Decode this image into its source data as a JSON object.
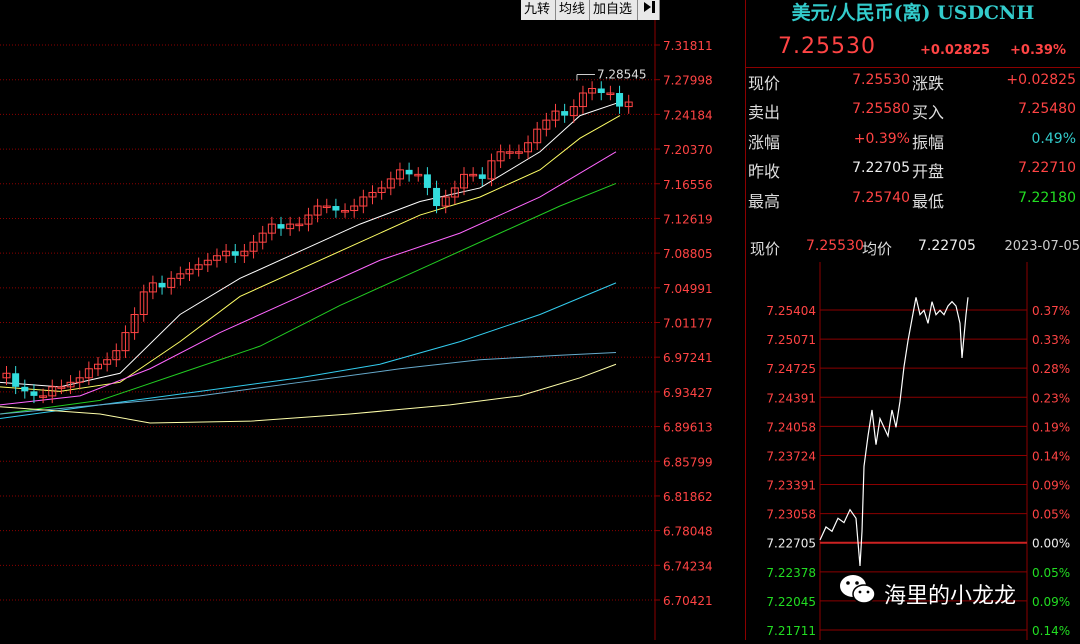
{
  "toolbar": {
    "jiuzhuan": "九转",
    "junxian": "均线",
    "jiazixuan": "加自选",
    "collapse_icon": "collapse-icon"
  },
  "left_axis": {
    "labels": [
      "7.31811",
      "7.27998",
      "7.24184",
      "7.20370",
      "7.16556",
      "7.12619",
      "7.08805",
      "7.04991",
      "7.01177",
      "6.97241",
      "6.93427",
      "6.89613",
      "6.85799",
      "6.81862",
      "6.78048",
      "6.74234",
      "6.70421"
    ],
    "peak_annotation": "7.28545"
  },
  "quote": {
    "title": "美元/人民币(离) USDCNH",
    "last": "7.25530",
    "change": "+0.02825",
    "change_pct": "+0.39%",
    "rows": [
      {
        "l1": "现价",
        "v1": "7.25530",
        "c1": "red",
        "l2": "涨跌",
        "v2": "+0.02825",
        "c2": "red"
      },
      {
        "l1": "卖出",
        "v1": "7.25580",
        "c1": "red",
        "l2": "买入",
        "v2": "7.25480",
        "c2": "red"
      },
      {
        "l1": "涨幅",
        "v1": "+0.39%",
        "c1": "red",
        "l2": "振幅",
        "v2": "0.49%",
        "c2": "cyan"
      },
      {
        "l1": "昨收",
        "v1": "7.22705",
        "c1": "white",
        "l2": "开盘",
        "v2": "7.22710",
        "c2": "red"
      },
      {
        "l1": "最高",
        "v1": "7.25740",
        "c1": "red",
        "l2": "最低",
        "v2": "7.22180",
        "c2": "green"
      }
    ]
  },
  "mini": {
    "label_price": "现价",
    "price": "7.25530",
    "label_avg": "均价",
    "avg": "7.22705",
    "date": "2023-07-05",
    "left_labels": [
      "7.25404",
      "7.25071",
      "7.24725",
      "7.24391",
      "7.24058",
      "7.23724",
      "7.23391",
      "7.23058",
      "7.22705",
      "7.22378",
      "7.22045",
      "7.21711"
    ],
    "right_labels": [
      "0.37%",
      "0.33%",
      "0.28%",
      "0.23%",
      "0.19%",
      "0.14%",
      "0.09%",
      "0.05%",
      "0.00%",
      "0.05%",
      "0.09%",
      "0.14%"
    ]
  },
  "watermark": {
    "text": "海里的小龙龙",
    "icon": "wechat-icon"
  },
  "colors": {
    "up": "#ff4444",
    "down": "#33dddd",
    "grid": "#8b0000",
    "ma5": "#ffffff",
    "ma10": "#ffff66",
    "ma20": "#ff66ff",
    "ma30": "#22cc22",
    "ma60": "#33ccee",
    "ma120": "#66aacc",
    "ma250": "#ffffaa"
  }
}
